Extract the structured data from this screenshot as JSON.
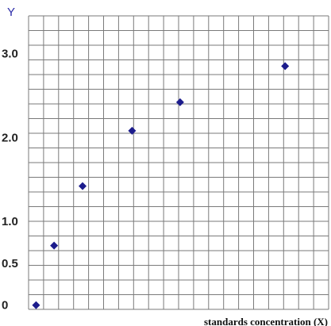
{
  "chart_data": {
    "type": "scatter",
    "title": "",
    "xlabel": "standards concentration (X)",
    "ylabel": "Y",
    "yticks": [
      {
        "value": 0,
        "label": "0"
      },
      {
        "value": 0.5,
        "label": "0.5"
      },
      {
        "value": 1.0,
        "label": "1.0"
      },
      {
        "value": 2.0,
        "label": "2.0"
      },
      {
        "value": 3.0,
        "label": "3.0"
      }
    ],
    "grid": true,
    "marker": "diamond",
    "colors": {
      "marker": "#1c1c8c",
      "grid": "#7a7a7a",
      "ylabel": "#2a2aa8"
    },
    "xlim": [
      0,
      20
    ],
    "ylim": [
      -0.05,
      3.45
    ],
    "points": [
      {
        "x": 0.5,
        "y": 0.0
      },
      {
        "x": 1.7,
        "y": 0.71
      },
      {
        "x": 3.6,
        "y": 1.42
      },
      {
        "x": 6.9,
        "y": 2.08
      },
      {
        "x": 10.1,
        "y": 2.42
      },
      {
        "x": 17.1,
        "y": 2.85
      }
    ]
  }
}
